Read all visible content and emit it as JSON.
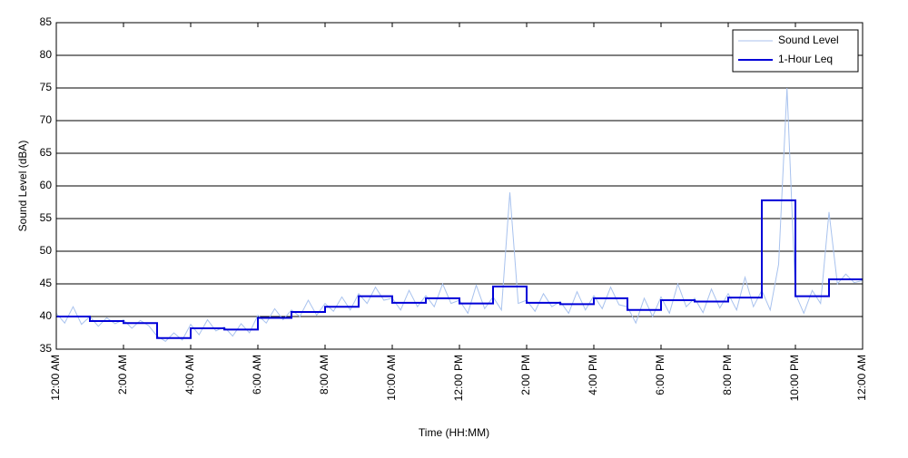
{
  "chart_data": {
    "type": "line",
    "xlabel": "Time (HH:MM)",
    "ylabel": "Sound Level (dBA)",
    "xlim": [
      0,
      24
    ],
    "ylim": [
      35,
      85
    ],
    "xticks": [
      {
        "value": 0,
        "label": "12:00 AM"
      },
      {
        "value": 2,
        "label": "2:00 AM"
      },
      {
        "value": 4,
        "label": "4:00 AM"
      },
      {
        "value": 6,
        "label": "6:00 AM"
      },
      {
        "value": 8,
        "label": "8:00 AM"
      },
      {
        "value": 10,
        "label": "10:00 AM"
      },
      {
        "value": 12,
        "label": "12:00 PM"
      },
      {
        "value": 14,
        "label": "2:00 PM"
      },
      {
        "value": 16,
        "label": "4:00 PM"
      },
      {
        "value": 18,
        "label": "6:00 PM"
      },
      {
        "value": 20,
        "label": "8:00 PM"
      },
      {
        "value": 22,
        "label": "10:00 PM"
      },
      {
        "value": 24,
        "label": "12:00 AM"
      }
    ],
    "yticks": [
      35,
      40,
      45,
      50,
      55,
      60,
      65,
      70,
      75,
      80,
      85
    ],
    "grid": true,
    "legend": "upper right",
    "series": [
      {
        "name": "Sound Level",
        "color": "#a8c2ee",
        "width": 1,
        "x": [
          0,
          0.25,
          0.5,
          0.75,
          1,
          1.25,
          1.5,
          1.75,
          2,
          2.25,
          2.5,
          2.75,
          3,
          3.25,
          3.5,
          3.75,
          4,
          4.25,
          4.5,
          4.75,
          5,
          5.25,
          5.5,
          5.75,
          6,
          6.25,
          6.5,
          6.75,
          7,
          7.25,
          7.5,
          7.75,
          8,
          8.25,
          8.5,
          8.75,
          9,
          9.25,
          9.5,
          9.75,
          10,
          10.25,
          10.5,
          10.75,
          11,
          11.25,
          11.5,
          11.75,
          12,
          12.25,
          12.5,
          12.75,
          13,
          13.25,
          13.5,
          13.75,
          14,
          14.25,
          14.5,
          14.75,
          15,
          15.25,
          15.5,
          15.75,
          16,
          16.25,
          16.5,
          16.75,
          17,
          17.25,
          17.5,
          17.75,
          18,
          18.25,
          18.5,
          18.75,
          19,
          19.25,
          19.5,
          19.75,
          20,
          20.25,
          20.5,
          20.75,
          21,
          21.25,
          21.5,
          21.75,
          22,
          22.25,
          22.5,
          22.75,
          23,
          23.25,
          23.5,
          23.75,
          24
        ],
        "values": [
          40.5,
          39,
          41.5,
          38.8,
          40,
          38.5,
          39.8,
          38.9,
          39.5,
          38.2,
          39.4,
          38.6,
          37,
          36.2,
          37.5,
          36.4,
          38.8,
          37.2,
          39.5,
          37.8,
          38.4,
          37,
          38.9,
          37.5,
          40.2,
          39,
          41.2,
          39.5,
          41,
          40,
          42.5,
          40.2,
          42,
          40.8,
          43,
          41,
          43.5,
          42,
          44.5,
          42.5,
          42.8,
          41,
          44,
          41.5,
          43.2,
          41.5,
          45,
          42,
          42.5,
          40.5,
          44.8,
          41.2,
          43,
          41,
          59,
          42,
          42.5,
          40.8,
          43.5,
          41.5,
          42.3,
          40.5,
          43.8,
          41,
          43.2,
          41.2,
          44.5,
          41.8,
          41.5,
          39,
          42.8,
          40,
          43,
          40.5,
          45,
          41.5,
          42.8,
          40.6,
          44.2,
          41.3,
          43.5,
          41,
          46,
          41.5,
          44,
          41,
          48,
          75,
          43.5,
          40.5,
          44,
          42,
          56,
          45,
          46.5,
          45.2,
          45.5
        ]
      },
      {
        "name": "1-Hour Leq",
        "color": "#0000d8",
        "width": 2,
        "step": "post",
        "x": [
          0,
          1,
          2,
          3,
          4,
          5,
          6,
          7,
          8,
          9,
          10,
          11,
          12,
          13,
          14,
          15,
          16,
          17,
          18,
          19,
          20,
          21,
          22,
          23,
          24
        ],
        "values": [
          40,
          39.3,
          39,
          36.7,
          38.2,
          38,
          39.8,
          40.7,
          41.5,
          43.1,
          42.1,
          42.8,
          42,
          44.6,
          42.1,
          41.9,
          42.8,
          41,
          42.5,
          42.3,
          42.9,
          57.8,
          43.1,
          45.7,
          45.7
        ]
      }
    ]
  }
}
